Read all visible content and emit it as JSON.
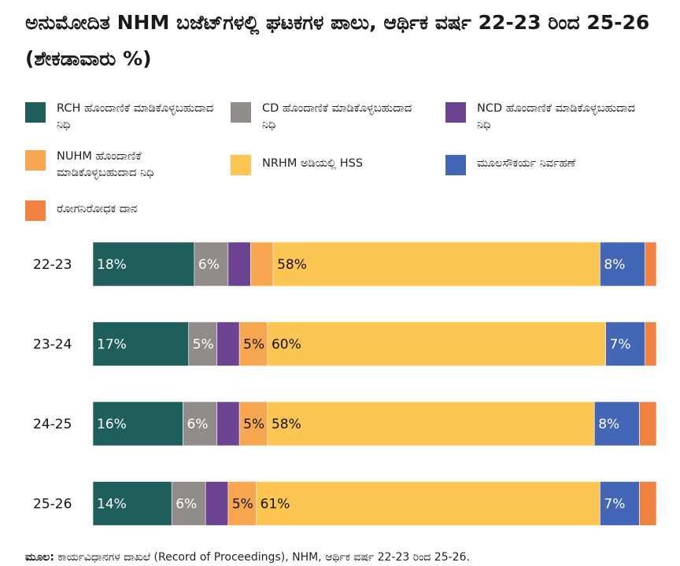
{
  "title": "ಅನುಮೋದಿತ NHM ಬಜೆಟ್‌ಗಳಲ್ಲಿ ಘಟಕಗಳ ಪಾಲು, ಆರ್ಥಿಕ ವರ್ಷ 22-23 ರಿಂದ 25-26 (ಶೇಕಡಾವಾರು %)",
  "legend": [
    {
      "label": "RCH ಹೊಂದಾಣಿಕೆ ಮಾಡಿಕೊಳ್ಳಬಹುದಾದ ನಿಧಿ",
      "color": "#1f5f5b"
    },
    {
      "label": "CD ಹೊಂದಾಣಿಕೆ ಮಾಡಿಕೊಳ್ಳಬಹುದಾದ ನಿಧಿ",
      "color": "#918c8a"
    },
    {
      "label": "NCD ಹೊಂದಾಣಿಕೆ ಮಾಡಿಕೊಳ್ಳಬಹುದಾದ ನಿಧಿ",
      "color": "#6b4391"
    },
    {
      "label": "NUHM ಹೊಂದಾಣಿಕೆ ಮಾಡಿಕೊಳ್ಳಬಹುದಾದ ನಿಧಿ",
      "color": "#f8a64f"
    },
    {
      "label": "NRHM ಅಡಿಯಲ್ಲಿ HSS",
      "color": "#fdc552"
    },
    {
      "label": "ಮೂಲಸೌಕರ್ಯ ನಿರ್ವಹಣೆ",
      "color": "#4466b6"
    },
    {
      "label": "ರೋಗನಿರೋಧಕ ದಾನ",
      "color": "#ef8241"
    }
  ],
  "chart_data": {
    "type": "bar",
    "orientation": "horizontal",
    "stacked": true,
    "categories": [
      "22-23",
      "23-24",
      "24-25",
      "25-26"
    ],
    "series": [
      {
        "name": "RCH ಹೊಂದಾಣಿಕೆ ಮಾಡಿಕೊಳ್ಳಬಹುದಾದ ನಿಧಿ",
        "values": [
          18,
          17,
          16,
          14
        ],
        "labels": [
          "18%",
          "17%",
          "16%",
          "14%"
        ]
      },
      {
        "name": "CD ಹೊಂದಾಣಿಕೆ ಮಾಡಿಕೊಳ್ಳಬಹುದಾದ ನಿಧಿ",
        "values": [
          6,
          5,
          6,
          6
        ],
        "labels": [
          "6%",
          "5%",
          "6%",
          "6%"
        ]
      },
      {
        "name": "NCD ಹೊಂದಾಣಿಕೆ ಮಾಡಿಕೊಳ್ಳಬಹುದಾದ ನಿಧಿ",
        "values": [
          4,
          4,
          4,
          4
        ],
        "labels": [
          "",
          "",
          "",
          ""
        ]
      },
      {
        "name": "NUHM ಹೊಂದಾಣಿಕೆ ಮಾಡಿಕೊಳ್ಳಬಹುದಾದ ನಿಧಿ",
        "values": [
          4,
          5,
          5,
          5
        ],
        "labels": [
          "",
          "5%",
          "5%",
          "5%"
        ]
      },
      {
        "name": "NRHM ಅಡಿಯಲ್ಲಿ HSS",
        "values": [
          58,
          60,
          58,
          61
        ],
        "labels": [
          "58%",
          "60%",
          "58%",
          "61%"
        ]
      },
      {
        "name": "ಮೂಲಸೌಕರ್ಯ ನಿರ್ವಹಣೆ",
        "values": [
          8,
          7,
          8,
          7
        ],
        "labels": [
          "8%",
          "7%",
          "8%",
          "7%"
        ]
      },
      {
        "name": "ರೋಗನಿರೋಧಕ ದಾನ",
        "values": [
          2,
          2,
          3,
          3
        ],
        "labels": [
          "",
          "",
          "",
          ""
        ]
      }
    ],
    "xlim": [
      0,
      100
    ],
    "grid": false,
    "legend_position": "top"
  },
  "source": {
    "prefix": "ಮೂಲ:",
    "text": " ಕಾರ್ಯವಿಧಾನಗಳ ದಾಖಲೆ (Record of Proceedings), NHM, ಆರ್ಥಿಕ ವರ್ಷ 22-23 ರಿಂದ 25-26."
  }
}
